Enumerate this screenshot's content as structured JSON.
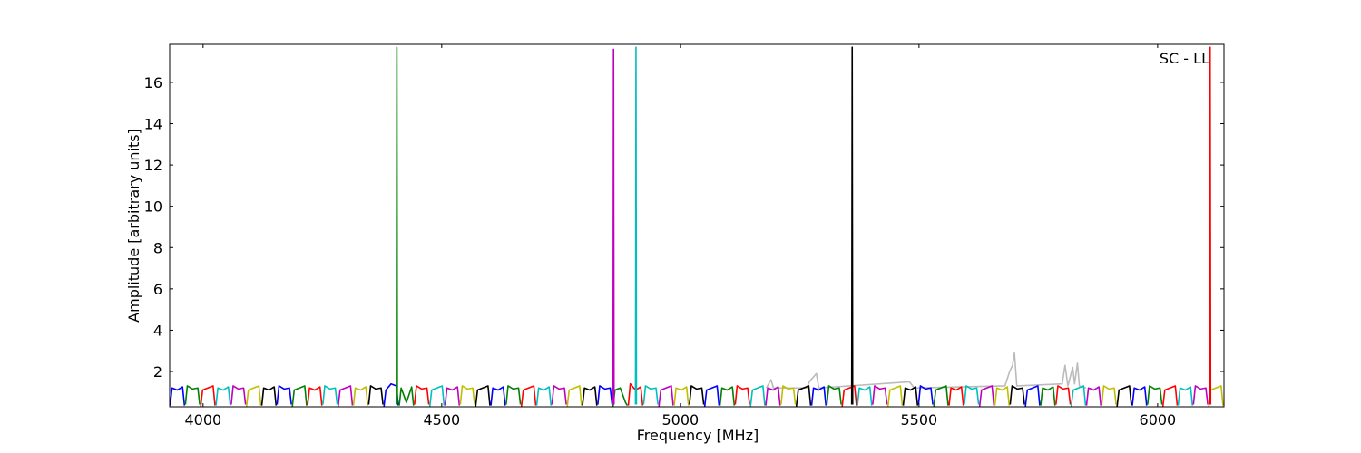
{
  "chart_data": {
    "type": "line",
    "annotation": "SC - LL",
    "xlabel": "Frequency [MHz]",
    "ylabel": "Amplitude [arbitrary units]",
    "xlim": [
      3930,
      6139
    ],
    "ylim": [
      0.29,
      17.84
    ],
    "xticks": [
      4000,
      4500,
      5000,
      5500,
      6000
    ],
    "yticks": [
      2,
      4,
      6,
      8,
      10,
      12,
      14,
      16
    ],
    "series": [
      {
        "color": "#bbbbbb",
        "x": [
          5180,
          5190,
          5195,
          5265,
          5270,
          5285,
          5290,
          5480,
          5490,
          5680,
          5690,
          5696,
          5700,
          5705,
          5800,
          5806,
          5812,
          5822,
          5826,
          5832,
          5836,
          5850
        ],
        "values": [
          1.2,
          1.6,
          1.2,
          1.2,
          1.5,
          1.9,
          1.2,
          1.5,
          1.2,
          1.3,
          2.0,
          2.3,
          2.9,
          1.3,
          1.4,
          2.3,
          1.3,
          2.2,
          1.4,
          2.4,
          1.3,
          1.2
        ]
      },
      {
        "color": "#0000ff",
        "x": [
          3931,
          3935,
          3946,
          3957,
          3961
        ],
        "values": [
          0.35,
          1.2,
          1.1,
          1.25,
          0.35
        ]
      },
      {
        "color": "#008000",
        "x": [
          3963,
          3967,
          3978,
          3989,
          3993
        ],
        "values": [
          0.4,
          1.3,
          1.15,
          1.2,
          0.4
        ]
      },
      {
        "color": "#ff0000",
        "x": [
          3995,
          3999,
          4010,
          4021,
          4025
        ],
        "values": [
          0.3,
          1.1,
          1.2,
          1.3,
          0.35
        ]
      },
      {
        "color": "#00bfbf",
        "x": [
          4027,
          4031,
          4042,
          4053,
          4057
        ],
        "values": [
          0.35,
          1.2,
          1.1,
          1.25,
          0.35
        ]
      },
      {
        "color": "#bf00bf",
        "x": [
          4059,
          4063,
          4074,
          4085,
          4089
        ],
        "values": [
          0.4,
          1.3,
          1.15,
          1.2,
          0.4
        ]
      },
      {
        "color": "#bfbf00",
        "x": [
          4091,
          4095,
          4106,
          4117,
          4121
        ],
        "values": [
          0.3,
          1.1,
          1.2,
          1.3,
          0.35
        ]
      },
      {
        "color": "#000000",
        "x": [
          4123,
          4127,
          4138,
          4149,
          4153
        ],
        "values": [
          0.35,
          1.2,
          1.1,
          1.25,
          0.35
        ]
      },
      {
        "color": "#0000ff",
        "x": [
          4155,
          4159,
          4170,
          4181,
          4185
        ],
        "values": [
          0.4,
          1.3,
          1.15,
          1.2,
          0.4
        ]
      },
      {
        "color": "#008000",
        "x": [
          4187,
          4191,
          4202,
          4213,
          4217
        ],
        "values": [
          0.3,
          1.1,
          1.2,
          1.3,
          0.35
        ]
      },
      {
        "color": "#ff0000",
        "x": [
          4219,
          4223,
          4234,
          4245,
          4249
        ],
        "values": [
          0.35,
          1.2,
          1.1,
          1.25,
          0.35
        ]
      },
      {
        "color": "#00bfbf",
        "x": [
          4251,
          4255,
          4266,
          4277,
          4281
        ],
        "values": [
          0.4,
          1.3,
          1.15,
          1.2,
          0.4
        ]
      },
      {
        "color": "#bf00bf",
        "x": [
          4283,
          4287,
          4298,
          4309,
          4313
        ],
        "values": [
          0.3,
          1.1,
          1.2,
          1.3,
          0.35
        ]
      },
      {
        "color": "#bfbf00",
        "x": [
          4315,
          4319,
          4330,
          4341,
          4345
        ],
        "values": [
          0.35,
          1.2,
          1.1,
          1.25,
          0.35
        ]
      },
      {
        "color": "#000000",
        "x": [
          4347,
          4351,
          4362,
          4373,
          4377
        ],
        "values": [
          0.4,
          1.3,
          1.15,
          1.2,
          0.4
        ]
      },
      {
        "color": "#0000ff",
        "x": [
          4379,
          4383,
          4394,
          4405,
          4409
        ],
        "values": [
          0.3,
          1.1,
          1.4,
          1.3,
          0.35
        ]
      },
      {
        "color": "#008000",
        "x": [
          4411,
          4415,
          4426,
          4437,
          4441
        ],
        "values": [
          0.35,
          1.2,
          0.5,
          1.25,
          0.35
        ]
      },
      {
        "color": "#ff0000",
        "x": [
          4443,
          4447,
          4458,
          4469,
          4473
        ],
        "values": [
          0.4,
          1.3,
          1.15,
          1.2,
          0.4
        ]
      },
      {
        "color": "#00bfbf",
        "x": [
          4475,
          4479,
          4490,
          4501,
          4505
        ],
        "values": [
          0.3,
          1.1,
          1.2,
          1.3,
          0.35
        ]
      },
      {
        "color": "#bf00bf",
        "x": [
          4507,
          4511,
          4522,
          4533,
          4537
        ],
        "values": [
          0.35,
          1.2,
          1.1,
          1.25,
          0.35
        ]
      },
      {
        "color": "#bfbf00",
        "x": [
          4539,
          4543,
          4554,
          4565,
          4569
        ],
        "values": [
          0.4,
          1.3,
          1.15,
          1.2,
          0.4
        ]
      },
      {
        "color": "#000000",
        "x": [
          4571,
          4575,
          4586,
          4597,
          4601
        ],
        "values": [
          0.3,
          1.1,
          1.2,
          1.3,
          0.35
        ]
      },
      {
        "color": "#0000ff",
        "x": [
          4603,
          4607,
          4618,
          4629,
          4633
        ],
        "values": [
          0.35,
          1.2,
          1.1,
          1.25,
          0.35
        ]
      },
      {
        "color": "#008000",
        "x": [
          4635,
          4639,
          4650,
          4661,
          4665
        ],
        "values": [
          0.4,
          1.3,
          1.15,
          1.2,
          0.4
        ]
      },
      {
        "color": "#ff0000",
        "x": [
          4667,
          4671,
          4682,
          4693,
          4697
        ],
        "values": [
          0.3,
          1.1,
          1.2,
          1.3,
          0.35
        ]
      },
      {
        "color": "#00bfbf",
        "x": [
          4699,
          4703,
          4714,
          4725,
          4729
        ],
        "values": [
          0.35,
          1.2,
          1.1,
          1.25,
          0.35
        ]
      },
      {
        "color": "#bf00bf",
        "x": [
          4731,
          4735,
          4746,
          4757,
          4761
        ],
        "values": [
          0.4,
          1.3,
          1.15,
          1.2,
          0.4
        ]
      },
      {
        "color": "#bfbf00",
        "x": [
          4763,
          4767,
          4778,
          4789,
          4793
        ],
        "values": [
          0.3,
          1.1,
          1.2,
          1.3,
          0.35
        ]
      },
      {
        "color": "#000000",
        "x": [
          4795,
          4799,
          4810,
          4821,
          4825
        ],
        "values": [
          0.35,
          1.2,
          1.1,
          1.25,
          0.35
        ]
      },
      {
        "color": "#0000ff",
        "x": [
          4827,
          4831,
          4842,
          4853,
          4857
        ],
        "values": [
          0.4,
          1.3,
          1.15,
          1.2,
          0.4
        ]
      },
      {
        "color": "#008000",
        "x": [
          4859,
          4863,
          4874,
          4885,
          4889
        ],
        "values": [
          0.3,
          1.1,
          1.2,
          0.5,
          0.35
        ]
      },
      {
        "color": "#ff0000",
        "x": [
          4891,
          4895,
          4906,
          4917,
          4921
        ],
        "values": [
          0.35,
          1.4,
          1.1,
          1.25,
          0.35
        ]
      },
      {
        "color": "#00bfbf",
        "x": [
          4923,
          4927,
          4938,
          4949,
          4953
        ],
        "values": [
          0.4,
          1.3,
          1.15,
          1.2,
          0.4
        ]
      },
      {
        "color": "#bf00bf",
        "x": [
          4955,
          4959,
          4970,
          4981,
          4985
        ],
        "values": [
          0.3,
          1.1,
          1.2,
          1.3,
          0.35
        ]
      },
      {
        "color": "#bfbf00",
        "x": [
          4987,
          4991,
          5002,
          5013,
          5017
        ],
        "values": [
          0.35,
          1.2,
          1.1,
          1.25,
          0.35
        ]
      },
      {
        "color": "#000000",
        "x": [
          5019,
          5023,
          5034,
          5045,
          5049
        ],
        "values": [
          0.4,
          1.3,
          1.15,
          1.2,
          0.4
        ]
      },
      {
        "color": "#0000ff",
        "x": [
          5051,
          5055,
          5066,
          5077,
          5081
        ],
        "values": [
          0.3,
          1.1,
          1.2,
          1.3,
          0.35
        ]
      },
      {
        "color": "#008000",
        "x": [
          5083,
          5087,
          5098,
          5109,
          5113
        ],
        "values": [
          0.35,
          1.2,
          1.1,
          1.25,
          0.35
        ]
      },
      {
        "color": "#ff0000",
        "x": [
          5115,
          5119,
          5130,
          5141,
          5145
        ],
        "values": [
          0.4,
          1.3,
          1.15,
          1.2,
          0.4
        ]
      },
      {
        "color": "#00bfbf",
        "x": [
          5147,
          5151,
          5162,
          5173,
          5177
        ],
        "values": [
          0.3,
          1.1,
          1.2,
          1.3,
          0.35
        ]
      },
      {
        "color": "#bf00bf",
        "x": [
          5179,
          5183,
          5194,
          5205,
          5209
        ],
        "values": [
          0.35,
          1.2,
          1.1,
          1.25,
          0.35
        ]
      },
      {
        "color": "#bfbf00",
        "x": [
          5211,
          5215,
          5226,
          5237,
          5241
        ],
        "values": [
          0.4,
          1.3,
          1.15,
          1.2,
          0.4
        ]
      },
      {
        "color": "#000000",
        "x": [
          5243,
          5247,
          5258,
          5269,
          5273
        ],
        "values": [
          0.3,
          1.1,
          1.2,
          1.3,
          0.35
        ]
      },
      {
        "color": "#0000ff",
        "x": [
          5275,
          5279,
          5290,
          5301,
          5305
        ],
        "values": [
          0.35,
          1.2,
          1.1,
          1.25,
          0.35
        ]
      },
      {
        "color": "#008000",
        "x": [
          5307,
          5311,
          5322,
          5333,
          5337
        ],
        "values": [
          0.4,
          1.3,
          1.15,
          1.2,
          0.4
        ]
      },
      {
        "color": "#ff0000",
        "x": [
          5339,
          5343,
          5354,
          5365,
          5369
        ],
        "values": [
          0.3,
          1.1,
          1.2,
          1.3,
          0.35
        ]
      },
      {
        "color": "#00bfbf",
        "x": [
          5371,
          5375,
          5386,
          5397,
          5401
        ],
        "values": [
          0.35,
          1.2,
          1.1,
          1.25,
          0.35
        ]
      },
      {
        "color": "#bf00bf",
        "x": [
          5403,
          5407,
          5418,
          5429,
          5433
        ],
        "values": [
          0.4,
          1.3,
          1.15,
          1.2,
          0.4
        ]
      },
      {
        "color": "#bfbf00",
        "x": [
          5435,
          5439,
          5450,
          5461,
          5465
        ],
        "values": [
          0.3,
          1.1,
          1.2,
          1.3,
          0.35
        ]
      },
      {
        "color": "#000000",
        "x": [
          5467,
          5471,
          5482,
          5493,
          5497
        ],
        "values": [
          0.35,
          1.2,
          1.1,
          1.25,
          0.35
        ]
      },
      {
        "color": "#0000ff",
        "x": [
          5499,
          5503,
          5514,
          5525,
          5529
        ],
        "values": [
          0.4,
          1.3,
          1.15,
          1.2,
          0.4
        ]
      },
      {
        "color": "#008000",
        "x": [
          5531,
          5535,
          5546,
          5557,
          5561
        ],
        "values": [
          0.3,
          1.1,
          1.2,
          1.3,
          0.35
        ]
      },
      {
        "color": "#ff0000",
        "x": [
          5563,
          5567,
          5578,
          5589,
          5593
        ],
        "values": [
          0.35,
          1.2,
          1.1,
          1.25,
          0.35
        ]
      },
      {
        "color": "#00bfbf",
        "x": [
          5595,
          5599,
          5610,
          5621,
          5625
        ],
        "values": [
          0.4,
          1.3,
          1.15,
          1.2,
          0.4
        ]
      },
      {
        "color": "#bf00bf",
        "x": [
          5627,
          5631,
          5642,
          5653,
          5657
        ],
        "values": [
          0.3,
          1.1,
          1.2,
          1.3,
          0.35
        ]
      },
      {
        "color": "#bfbf00",
        "x": [
          5659,
          5663,
          5674,
          5685,
          5689
        ],
        "values": [
          0.35,
          1.2,
          1.1,
          1.25,
          0.35
        ]
      },
      {
        "color": "#000000",
        "x": [
          5691,
          5695,
          5706,
          5717,
          5721
        ],
        "values": [
          0.4,
          1.3,
          1.15,
          1.2,
          0.4
        ]
      },
      {
        "color": "#0000ff",
        "x": [
          5723,
          5727,
          5738,
          5749,
          5753
        ],
        "values": [
          0.3,
          1.1,
          1.2,
          1.3,
          0.35
        ]
      },
      {
        "color": "#008000",
        "x": [
          5755,
          5759,
          5770,
          5781,
          5785
        ],
        "values": [
          0.35,
          1.2,
          1.1,
          1.25,
          0.35
        ]
      },
      {
        "color": "#ff0000",
        "x": [
          5787,
          5791,
          5802,
          5813,
          5817
        ],
        "values": [
          0.4,
          1.3,
          1.15,
          1.2,
          0.4
        ]
      },
      {
        "color": "#00bfbf",
        "x": [
          5819,
          5823,
          5834,
          5845,
          5849
        ],
        "values": [
          0.3,
          1.1,
          1.2,
          1.3,
          0.35
        ]
      },
      {
        "color": "#bf00bf",
        "x": [
          5851,
          5855,
          5866,
          5877,
          5881
        ],
        "values": [
          0.35,
          1.2,
          1.1,
          1.25,
          0.35
        ]
      },
      {
        "color": "#bfbf00",
        "x": [
          5883,
          5887,
          5898,
          5909,
          5913
        ],
        "values": [
          0.4,
          1.3,
          1.15,
          1.2,
          0.4
        ]
      },
      {
        "color": "#000000",
        "x": [
          5915,
          5919,
          5930,
          5941,
          5945
        ],
        "values": [
          0.3,
          1.1,
          1.2,
          1.3,
          0.35
        ]
      },
      {
        "color": "#0000ff",
        "x": [
          5947,
          5951,
          5962,
          5973,
          5977
        ],
        "values": [
          0.35,
          1.2,
          1.1,
          1.25,
          0.35
        ]
      },
      {
        "color": "#008000",
        "x": [
          5979,
          5983,
          5994,
          6005,
          6009
        ],
        "values": [
          0.4,
          1.3,
          1.15,
          1.2,
          0.4
        ]
      },
      {
        "color": "#ff0000",
        "x": [
          6011,
          6015,
          6026,
          6037,
          6041
        ],
        "values": [
          0.3,
          1.1,
          1.2,
          1.3,
          0.35
        ]
      },
      {
        "color": "#00bfbf",
        "x": [
          6043,
          6047,
          6058,
          6069,
          6073
        ],
        "values": [
          0.35,
          1.2,
          1.1,
          1.25,
          0.35
        ]
      },
      {
        "color": "#bf00bf",
        "x": [
          6075,
          6079,
          6090,
          6101,
          6105
        ],
        "values": [
          0.4,
          1.3,
          1.15,
          1.2,
          0.4
        ]
      },
      {
        "color": "#bfbf00",
        "x": [
          6107,
          6111,
          6122,
          6133,
          6137
        ],
        "values": [
          0.3,
          1.1,
          1.2,
          1.3,
          0.35
        ]
      },
      {
        "color": "#008000",
        "x": [
          4405,
          4406,
          4407
        ],
        "values": [
          0.4,
          17.7,
          0.4
        ]
      },
      {
        "color": "#bf00bf",
        "x": [
          4859,
          4860,
          4861
        ],
        "values": [
          0.4,
          17.6,
          0.4
        ]
      },
      {
        "color": "#00bfbf",
        "x": [
          4906,
          4907,
          4908
        ],
        "values": [
          0.4,
          17.7,
          0.4
        ]
      },
      {
        "color": "#000000",
        "x": [
          5359,
          5360,
          5361
        ],
        "values": [
          0.4,
          17.7,
          0.4
        ]
      },
      {
        "color": "#ff0000",
        "x": [
          6109,
          6110,
          6111
        ],
        "values": [
          0.4,
          17.7,
          0.4
        ]
      }
    ]
  }
}
